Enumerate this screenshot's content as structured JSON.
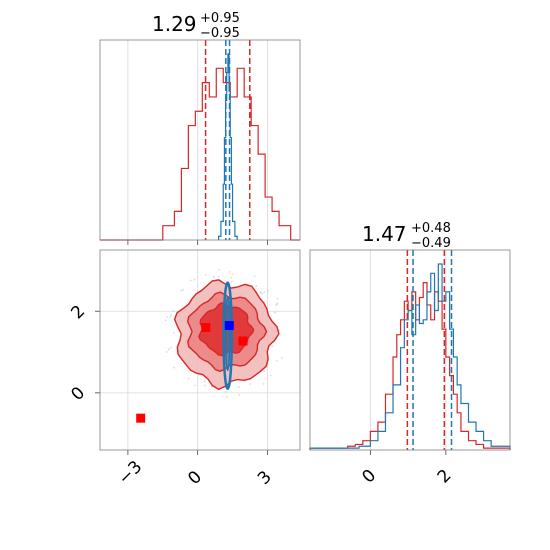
{
  "colors": {
    "red": "#d62728",
    "red_fill_light": "#f2b6b6",
    "red_fill_mid": "#eb8080",
    "red_fill_dark": "#dd2b2b",
    "blue": "#1f77b4",
    "marker_blue": "#0000ff",
    "marker_red": "#ff0000",
    "grid": "#d9d9d9"
  },
  "chart_data": [
    {
      "type": "histogram",
      "panel": "top-left",
      "title": {
        "value": "1.29",
        "plus": "+0.95",
        "minus": "−0.95"
      },
      "xlim": [
        -4.2,
        4.4
      ],
      "grid": true,
      "xticks": [
        -3,
        0,
        3
      ],
      "show_tick_labels": false,
      "series": [
        {
          "color": "red",
          "bins_x": [
            -4.2,
            -3.5,
            -3.0,
            -2.5,
            -2.0,
            -1.5,
            -1.0,
            -0.7,
            -0.4,
            -0.1,
            0.2,
            0.5,
            0.8,
            1.1,
            1.4,
            1.7,
            2.0,
            2.3,
            2.6,
            2.9,
            3.2,
            3.5,
            4.0,
            4.4
          ],
          "counts": [
            0,
            0,
            0,
            0,
            0,
            0.01,
            0.02,
            0.05,
            0.08,
            0.09,
            0.11,
            0.1,
            0.12,
            0.11,
            0.1,
            0.12,
            0.1,
            0.08,
            0.06,
            0.03,
            0.02,
            0.01,
            0.0
          ]
        },
        {
          "color": "blue",
          "bins_x": [
            0.9,
            1.0,
            1.1,
            1.15,
            1.2,
            1.25,
            1.3,
            1.35,
            1.4,
            1.45,
            1.5,
            1.6,
            1.7
          ],
          "counts": [
            0.02,
            0.1,
            0.3,
            0.55,
            0.75,
            0.9,
            1.0,
            0.8,
            0.55,
            0.3,
            0.1,
            0.02
          ]
        }
      ],
      "vlines": [
        {
          "color": "red",
          "x": 0.34
        },
        {
          "color": "red",
          "x": 2.24
        },
        {
          "color": "blue",
          "x": 1.21
        },
        {
          "color": "blue",
          "x": 1.37
        }
      ]
    },
    {
      "type": "histogram",
      "panel": "bottom-right",
      "title": {
        "value": "1.47",
        "plus": "+0.48",
        "minus": "−0.49"
      },
      "xlim": [
        -1.6,
        3.7
      ],
      "grid": true,
      "xticks": [
        0,
        2
      ],
      "xticklabels": [
        "0",
        "2"
      ],
      "series": [
        {
          "color": "red",
          "bins_x": [
            -1.6,
            -0.6,
            -0.4,
            -0.2,
            0.0,
            0.2,
            0.4,
            0.6,
            0.7,
            0.8,
            0.9,
            1.0,
            1.1,
            1.2,
            1.3,
            1.4,
            1.5,
            1.6,
            1.7,
            1.8,
            1.9,
            2.0,
            2.1,
            2.2,
            2.3,
            2.4,
            2.6,
            2.8,
            3.0,
            3.7
          ],
          "counts": [
            0.01,
            0.02,
            0.03,
            0.05,
            0.1,
            0.15,
            0.3,
            0.5,
            0.62,
            0.7,
            0.8,
            0.75,
            0.85,
            0.7,
            0.82,
            0.9,
            0.78,
            0.7,
            0.85,
            0.8,
            0.65,
            0.5,
            0.4,
            0.3,
            0.2,
            0.1,
            0.05,
            0.03,
            0.01
          ]
        },
        {
          "color": "blue",
          "bins_x": [
            -1.6,
            -0.3,
            0.0,
            0.2,
            0.4,
            0.6,
            0.8,
            0.9,
            1.0,
            1.1,
            1.2,
            1.3,
            1.4,
            1.5,
            1.6,
            1.7,
            1.8,
            1.9,
            2.0,
            2.1,
            2.2,
            2.3,
            2.4,
            2.6,
            2.8,
            3.0,
            3.2,
            3.7
          ],
          "counts": [
            0.01,
            0.02,
            0.05,
            0.1,
            0.2,
            0.35,
            0.55,
            0.7,
            0.75,
            0.62,
            0.78,
            0.68,
            0.7,
            0.85,
            0.95,
            0.75,
            1.0,
            0.8,
            0.85,
            0.65,
            0.5,
            0.35,
            0.25,
            0.15,
            0.1,
            0.05,
            0.02
          ]
        }
      ],
      "vlines": [
        {
          "color": "red",
          "x": 0.98
        },
        {
          "color": "red",
          "x": 1.96
        },
        {
          "color": "blue",
          "x": 1.13
        },
        {
          "color": "blue",
          "x": 2.15
        }
      ]
    },
    {
      "type": "contour",
      "panel": "bottom-left",
      "xlim": [
        -4.2,
        4.4
      ],
      "ylim": [
        -1.4,
        3.5
      ],
      "grid": true,
      "xticks": [
        -3,
        0,
        3
      ],
      "xticklabels": [
        "−3",
        "0",
        "3"
      ],
      "yticks": [
        0,
        2
      ],
      "yticklabels": [
        "0",
        "2"
      ],
      "red_contours": [
        {
          "cx": 1.2,
          "cy": 1.45,
          "rx": 2.1,
          "ry": 1.25,
          "level": "outer"
        },
        {
          "cx": 1.2,
          "cy": 1.5,
          "rx": 1.6,
          "ry": 0.9,
          "level": "mid"
        },
        {
          "cx": 1.2,
          "cy": 1.55,
          "rx": 1.1,
          "ry": 0.6,
          "level": "inner"
        }
      ],
      "blue_contours": [
        {
          "cx": 1.29,
          "cy": 1.4,
          "rx": 0.18,
          "ry": 1.3
        },
        {
          "cx": 1.29,
          "cy": 1.45,
          "rx": 0.09,
          "ry": 0.9
        }
      ],
      "markers": [
        {
          "x": 1.36,
          "y": 1.65,
          "color": "marker_blue"
        },
        {
          "x": 0.35,
          "y": 1.6,
          "color": "marker_red"
        },
        {
          "x": 1.95,
          "y": 1.27,
          "color": "marker_red"
        },
        {
          "x": -2.45,
          "y": -0.62,
          "color": "marker_red"
        }
      ]
    }
  ]
}
